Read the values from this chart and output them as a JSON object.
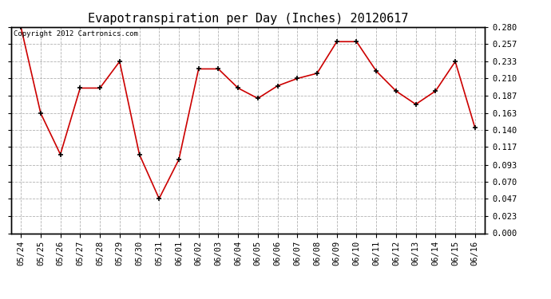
{
  "title": "Evapotranspiration per Day (Inches) 20120617",
  "copyright_text": "Copyright 2012 Cartronics.com",
  "dates": [
    "05/24",
    "05/25",
    "05/26",
    "05/27",
    "05/28",
    "05/29",
    "05/30",
    "05/31",
    "06/01",
    "06/02",
    "06/03",
    "06/04",
    "06/05",
    "06/06",
    "06/07",
    "06/08",
    "06/09",
    "06/10",
    "06/11",
    "06/12",
    "06/13",
    "06/14",
    "06/15",
    "06/16"
  ],
  "values": [
    0.28,
    0.163,
    0.107,
    0.197,
    0.197,
    0.233,
    0.107,
    0.047,
    0.1,
    0.223,
    0.223,
    0.197,
    0.183,
    0.2,
    0.21,
    0.217,
    0.26,
    0.26,
    0.22,
    0.193,
    0.175,
    0.193,
    0.233,
    0.143
  ],
  "ylim": [
    0.0,
    0.28
  ],
  "yticks": [
    0.0,
    0.023,
    0.047,
    0.07,
    0.093,
    0.117,
    0.14,
    0.163,
    0.187,
    0.21,
    0.233,
    0.257,
    0.28
  ],
  "line_color": "#cc0000",
  "marker": "+",
  "marker_color": "#000000",
  "bg_color": "#ffffff",
  "grid_color": "#aaaaaa",
  "title_fontsize": 11,
  "tick_fontsize": 7.5,
  "copyright_fontsize": 6.5
}
